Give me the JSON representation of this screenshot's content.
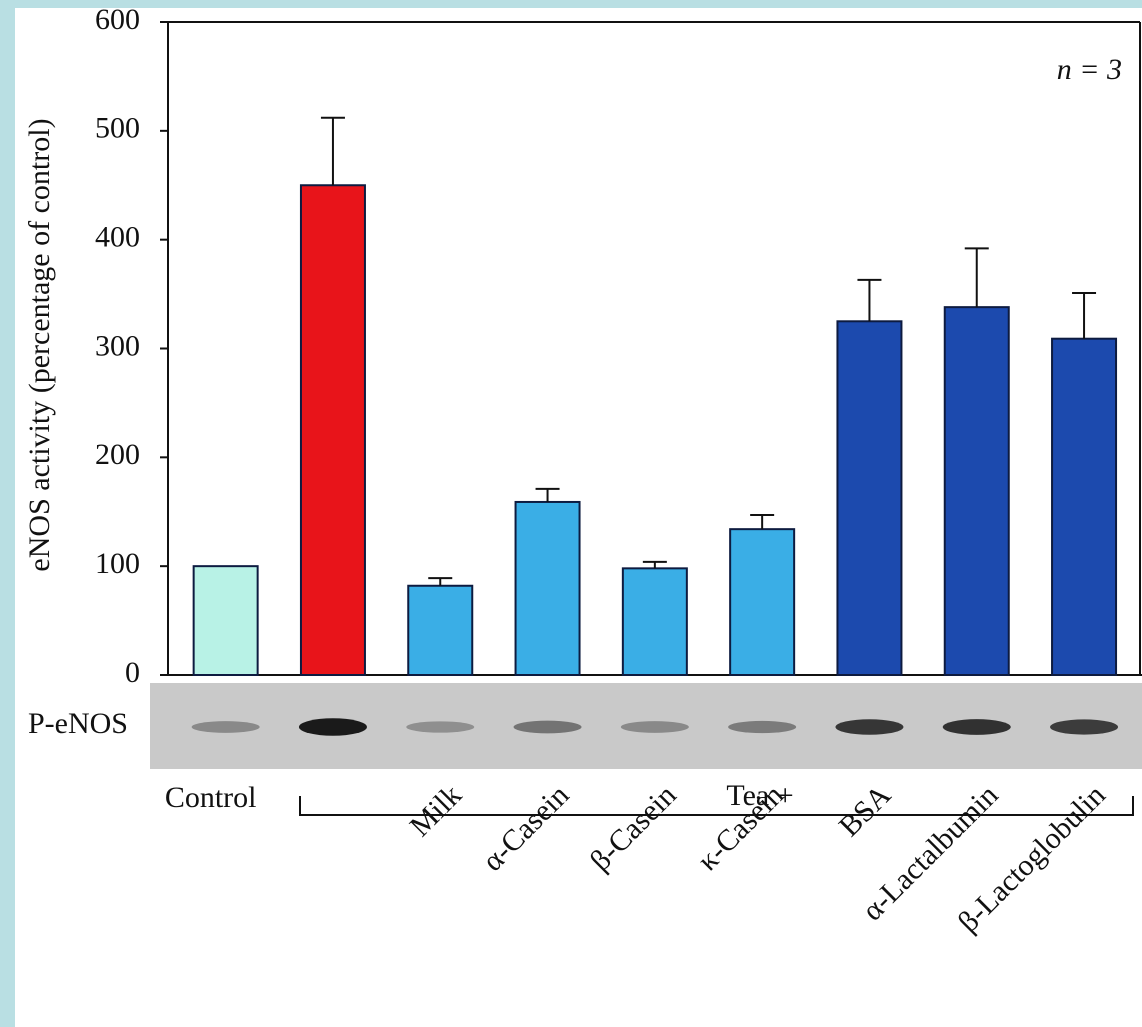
{
  "chart_data": {
    "type": "bar",
    "ylabel": "eNOS activity (percentage of control)",
    "annotation": "n = 3",
    "categories": [
      "Control",
      null,
      "Milk",
      "α-Casein",
      "β-Casein",
      "κ-Casein",
      "BSA",
      "α-Lactalbumin",
      "β-Lactoglobulin"
    ],
    "values": [
      100,
      450,
      82,
      159,
      98,
      134,
      325,
      338,
      309
    ],
    "errors": [
      null,
      62,
      7,
      12,
      6,
      13,
      38,
      54,
      42
    ],
    "colors": [
      "#b8f2e6",
      "#e8141a",
      "#3aaee6",
      "#3aaee6",
      "#3aaee6",
      "#3aaee6",
      "#1c4aae",
      "#1c4aae",
      "#1c4aae"
    ],
    "group_label": "Tea +",
    "blot_label": "P-eNOS",
    "ylim": [
      0,
      600
    ],
    "yticks": [
      0,
      100,
      200,
      300,
      400,
      500,
      600
    ]
  }
}
